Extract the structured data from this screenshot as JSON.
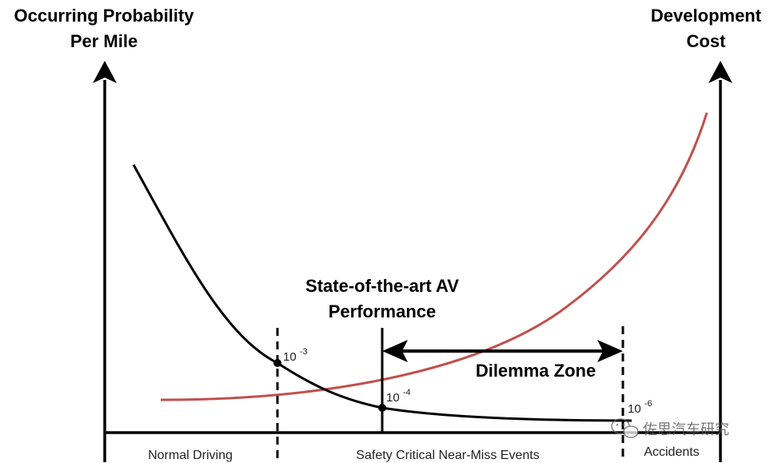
{
  "left_axis": {
    "title_line1": "Occurring Probability",
    "title_line2": "Per Mile"
  },
  "right_axis": {
    "title_line1": "Development",
    "title_line2": "Cost"
  },
  "sota": {
    "line1": "State-of-the-art AV",
    "line2": "Performance"
  },
  "dilemma_zone": "Dilemma Zone",
  "thresholds": [
    {
      "base": "10",
      "exp": "-3"
    },
    {
      "base": "10",
      "exp": "-4"
    },
    {
      "base": "10",
      "exp": "-6"
    }
  ],
  "regions": {
    "normal": "Normal Driving",
    "near_miss": "Safety Critical Near-Miss Events",
    "accidents": "Accidents"
  },
  "watermark": "佐思汽车研究",
  "colors": {
    "probability_curve": "#000000",
    "cost_curve": "#c0504d",
    "axes": "#000000"
  }
}
